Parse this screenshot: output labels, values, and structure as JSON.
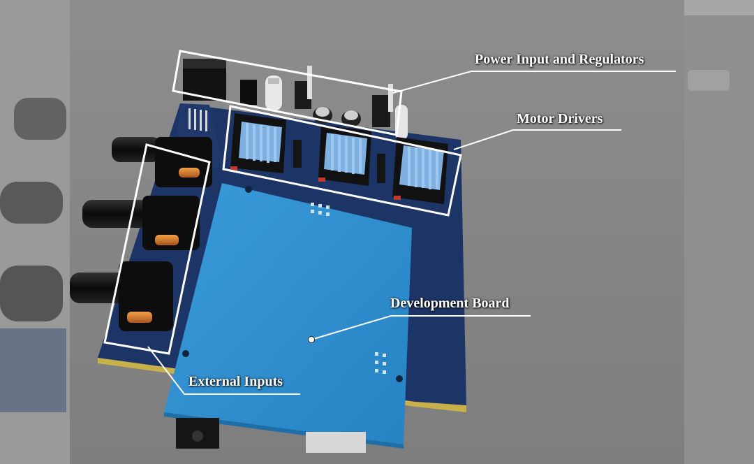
{
  "labels": {
    "power": "Power Input and Regulators",
    "motor": "Motor Drivers",
    "dev": "Development Board",
    "ext": "External Inputs"
  },
  "colors": {
    "background": "#8a8a8a",
    "pcb": "#1d3566",
    "dev_board": "#2f8fd0",
    "heatsink": "#7fb0e0",
    "annotation": "#ffffff"
  },
  "icons": [
    "dc-barrel-jack",
    "voltage-regulator",
    "electrolytic-capacitor",
    "stepper-driver-heatsink",
    "rotary-potentiometer",
    "header-pins"
  ]
}
